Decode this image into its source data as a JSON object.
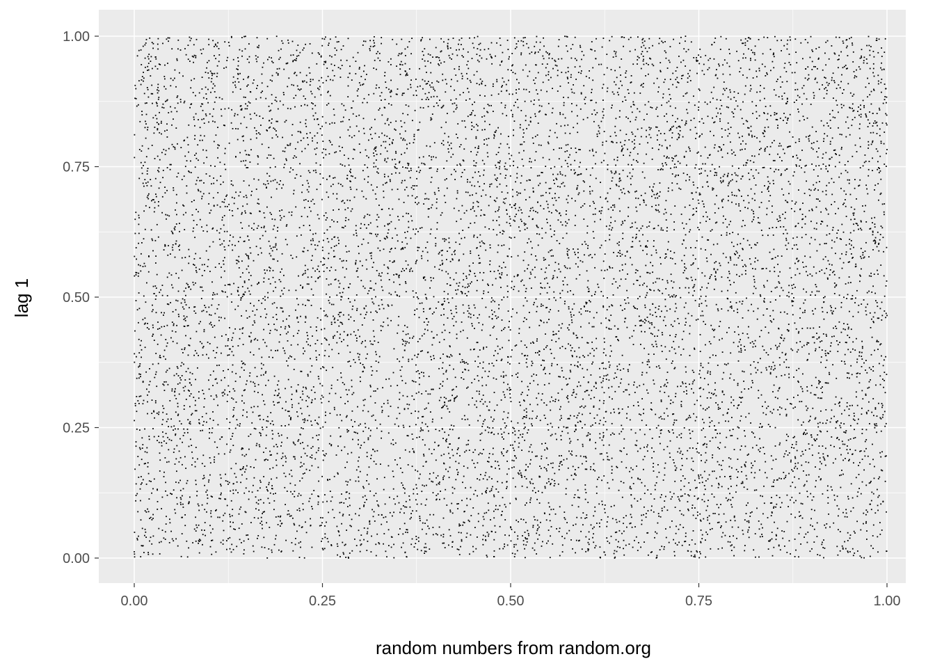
{
  "chart_data": {
    "type": "scatter",
    "title": "",
    "xlabel": "random numbers from random.org",
    "ylabel": "lag 1",
    "xlim": [
      0,
      1
    ],
    "ylim": [
      0,
      1
    ],
    "x_ticks": [
      "0.00",
      "0.25",
      "0.50",
      "0.75",
      "1.00"
    ],
    "y_ticks": [
      "0.00",
      "0.25",
      "0.50",
      "0.75",
      "1.00"
    ],
    "x_tick_values": [
      0,
      0.25,
      0.5,
      0.75,
      1
    ],
    "y_tick_values": [
      0,
      0.25,
      0.5,
      0.75,
      1
    ],
    "grid": true,
    "legend": "none",
    "n_points_estimate": 10000,
    "point_color": "#000000",
    "panel_background": "#ebebeb",
    "grid_color": "#ffffff",
    "distribution": "uniform on [0,1] x [0,1]; points drawn from a seeded uniform generator (individual values not legible)"
  }
}
